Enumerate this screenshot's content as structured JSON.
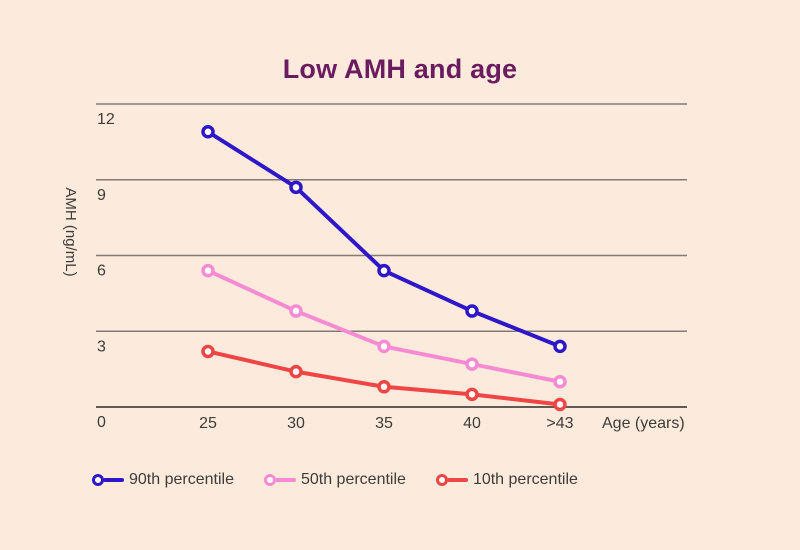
{
  "title": "Low AMH and age",
  "colors": {
    "background": "#fceadd",
    "title": "#6b1c5f",
    "text": "#3e3c39",
    "grid": "#837b72",
    "axis": "#5f5a53"
  },
  "chart_data": {
    "type": "line",
    "title": "Low AMH and age",
    "x_tick_labels": [
      "25",
      "30",
      "35",
      "40",
      ">43"
    ],
    "xlabel": "Age (years)",
    "ylabel": "AMH (ng/mL)",
    "y_ticks": [
      12,
      9,
      6,
      3,
      0
    ],
    "ylim": [
      0,
      12
    ],
    "grid": true,
    "legend_position": "bottom",
    "series": [
      {
        "name": "90th percentile",
        "color": "#2d17c9",
        "values": [
          10.9,
          8.7,
          5.4,
          3.8,
          2.4
        ]
      },
      {
        "name": "50th percentile",
        "color": "#f78bd3",
        "values": [
          5.4,
          3.8,
          2.4,
          1.7,
          1.0
        ]
      },
      {
        "name": "10th percentile",
        "color": "#f04545",
        "values": [
          2.2,
          1.4,
          0.8,
          0.5,
          0.1
        ]
      }
    ]
  }
}
